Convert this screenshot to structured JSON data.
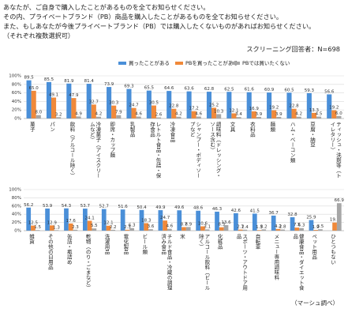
{
  "header": {
    "lines": [
      "あなたが、ご自身で購入したことがあるものを全てお知らせください。",
      "その内、プライベートブランド（PB）商品を購入したことがあるものを全てお知らせください。",
      "また、もしあなたが今後プライベートブランド（PB）では購入したくないものがあればお知らせください。",
      "（それぞれ複数選択可）"
    ],
    "respondents": "スクリーニング回答者：N=698"
  },
  "footer": "（マーシュ調べ）",
  "chart_data": [
    {
      "type": "bar",
      "categories": [
        "菓子",
        "パン",
        "飲料（アルコール除く）",
        "冷凍菓子（アイスクリームなど）",
        "即席・カップ麺",
        "乳製品",
        "レトルト食品・缶詰・保存食品",
        "冷凍食品",
        "シャンプー・ボディソープなど",
        "調味料（ドレッシング・ソース含む）",
        "文具",
        "衣料品",
        "麺類",
        "ハム・ベーコン類",
        "豆腐・納豆",
        "ティッシュ・洗剤等（トイレタリー）"
      ],
      "series": [
        {
          "name": "買ったことがある",
          "color": "#4a8fd8",
          "values": [
            89.5,
            85.5,
            81.9,
            81.4,
            73.9,
            69.3,
            65.5,
            64.6,
            63.6,
            62.8,
            62.5,
            61.6,
            60.9,
            60.5,
            59.3,
            56.6
          ]
        },
        {
          "name": "PBを買ったことがある",
          "color": "#f0893a",
          "values": [
            65.0,
            49.1,
            47.9,
            32.7,
            30.3,
            24.7,
            30.5,
            22.8,
            17.2,
            25.2,
            12.1,
            16.9,
            19.2,
            22.8,
            13.3,
            19.2
          ],
          "value_labels": [
            "65.0",
            "49.1",
            "47.9",
            "32.7",
            "30.3",
            "24.7",
            "30.5",
            "22.8",
            "17.2",
            "25.2",
            "12.1",
            "16.9",
            "19.2",
            "22.8",
            "13.3",
            "19.2"
          ]
        },
        {
          "name": "PBでは買いたくない",
          "color": "#a6a6a6",
          "values": [
            8.0,
            3.2,
            4.9,
            4.2,
            7.9,
            4.6,
            2.6,
            4.2,
            4.6,
            10.3,
            3.4,
            3.9,
            3.9,
            4.2,
            4.5,
            6.0
          ],
          "value_labels": [
            "8.0",
            "3.2",
            "4.9",
            "4.2",
            "7.9",
            "4.6",
            "2.6",
            "4.2",
            "4.6",
            "10.3",
            "3.4",
            "3.9",
            "3.9",
            "4.2",
            "4.5",
            "6.0"
          ]
        }
      ],
      "ylim": [
        0,
        100
      ],
      "yticks": [
        {
          "value": 0,
          "label": "0%"
        },
        {
          "value": 20,
          "label": "20%"
        },
        {
          "value": 40,
          "label": "40%"
        },
        {
          "value": 60,
          "label": "60%"
        },
        {
          "value": 80,
          "label": "80%"
        },
        {
          "value": 100,
          "label": "100%"
        }
      ],
      "grid": true,
      "legend": "top"
    },
    {
      "type": "bar",
      "categories": [
        "雑貨",
        "その他の日用品",
        "缶詰・瓶詰め",
        "乾物（のり・ごまなど）",
        "洗濯用品",
        "電化製品",
        "ビール類",
        "チルド食品・冷蔵の調理済み食品",
        "米",
        "アルコール飲料（ビール除く）",
        "化粧品",
        "スポーツ・アウトドア用品",
        "自転車",
        "メニュー専用調味料",
        "健康食品・ダイエット食品",
        "ペット用品",
        "ひとつもない"
      ],
      "series": [
        {
          "color": "#4a8fd8",
          "values": [
            56.2,
            53.9,
            54.3,
            53.7,
            52.7,
            51.6,
            50.4,
            49.9,
            49.6,
            48.6,
            46.3,
            42.6,
            41.5,
            36.7,
            32.8,
            25.9,
            null
          ]
        },
        {
          "color": "#f0893a",
          "values": [
            12.5,
            12.9,
            17.6,
            24.1,
            12.1,
            2.3,
            18.3,
            24.7,
            8.7,
            10.6,
            8.3,
            2.7,
            1.5,
            4.2,
            7.5,
            1.9,
            19.8
          ]
        },
        {
          "color": "#a6a6a6",
          "values": [
            1.5,
            1.3,
            2.3,
            5.5,
            2.2,
            6.3,
            3.6,
            4.6,
            8.9,
            3.1,
            13.6,
            2.4,
            3.2,
            2.8,
            6.3,
            3.5,
            66.9
          ]
        }
      ],
      "ylim": [
        0,
        100
      ],
      "yticks": [
        {
          "value": 0,
          "label": "0%"
        },
        {
          "value": 20,
          "label": "20%"
        },
        {
          "value": 40,
          "label": "40%"
        },
        {
          "value": 60,
          "label": "60%"
        },
        {
          "value": 80,
          "label": "80%"
        },
        {
          "value": 100,
          "label": "100%"
        }
      ],
      "grid": true
    }
  ]
}
